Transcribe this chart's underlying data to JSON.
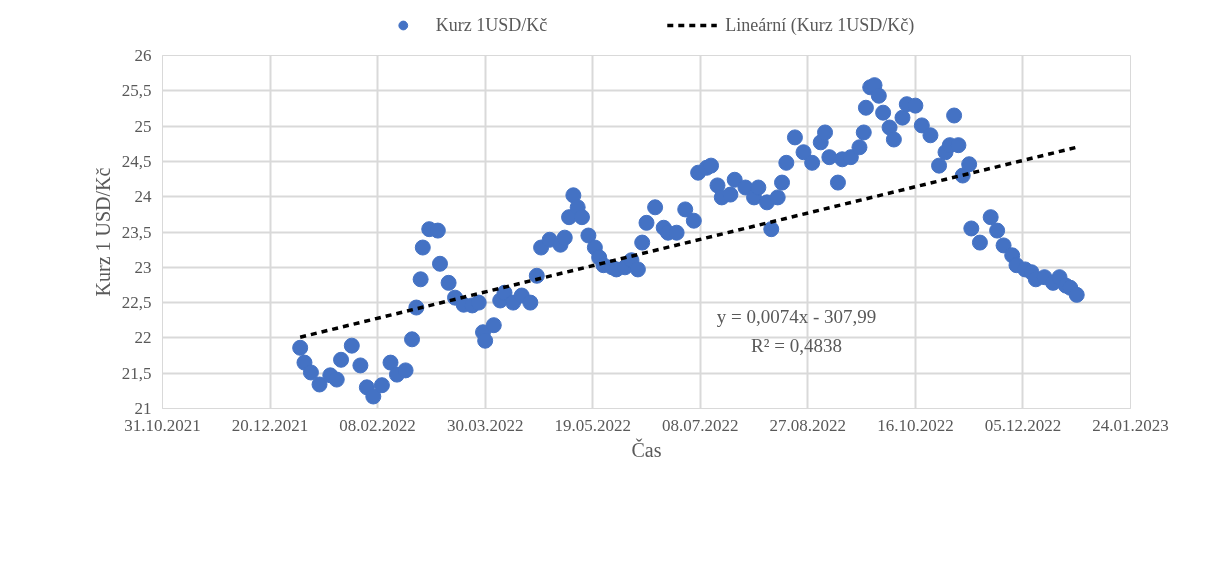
{
  "chart_data": {
    "type": "scatter",
    "xlabel": "Čas",
    "ylabel": "Kurz 1 USD/Kč",
    "xlim": [
      "2021-10-31",
      "2023-01-24"
    ],
    "xticks": [
      {
        "value": "2021-10-31",
        "label": "31.10.2021"
      },
      {
        "value": "2021-12-20",
        "label": "20.12.2021"
      },
      {
        "value": "2022-02-08",
        "label": "08.02.2022"
      },
      {
        "value": "2022-03-30",
        "label": "30.03.2022"
      },
      {
        "value": "2022-05-19",
        "label": "19.05.2022"
      },
      {
        "value": "2022-07-08",
        "label": "08.07.2022"
      },
      {
        "value": "2022-08-27",
        "label": "27.08.2022"
      },
      {
        "value": "2022-10-16",
        "label": "16.10.2022"
      },
      {
        "value": "2022-12-05",
        "label": "05.12.2022"
      },
      {
        "value": "2023-01-24",
        "label": "24.01.2023"
      }
    ],
    "ylim": [
      21,
      26
    ],
    "yticks": [
      21,
      {
        "value": 21.5,
        "label": "21,5"
      },
      22,
      {
        "value": 22.5,
        "label": "22,5"
      },
      23,
      {
        "value": 23.5,
        "label": "23,5"
      },
      24,
      {
        "value": 24.5,
        "label": "24,5"
      },
      25,
      {
        "value": 25.5,
        "label": "25,5"
      },
      26
    ],
    "grid": true,
    "legend": "top",
    "annotations": [
      "y = 0,0074x - 307,99",
      "R² = 0,4838"
    ],
    "series": [
      {
        "name": "Kurz 1USD/Kč",
        "marker": "circle",
        "color": "#4472c4",
        "x": [
          "2022-01-03",
          "2022-01-05",
          "2022-01-08",
          "2022-01-12",
          "2022-01-17",
          "2022-01-20",
          "2022-01-22",
          "2022-01-27",
          "2022-01-31",
          "2022-02-03",
          "2022-02-06",
          "2022-02-10",
          "2022-02-14",
          "2022-02-17",
          "2022-02-21",
          "2022-02-24",
          "2022-02-26",
          "2022-02-28",
          "2022-03-01",
          "2022-03-04",
          "2022-03-08",
          "2022-03-09",
          "2022-03-13",
          "2022-03-16",
          "2022-03-20",
          "2022-03-24",
          "2022-03-27",
          "2022-03-29",
          "2022-03-30",
          "2022-04-03",
          "2022-04-06",
          "2022-04-08",
          "2022-04-12",
          "2022-04-16",
          "2022-04-20",
          "2022-04-23",
          "2022-04-25",
          "2022-04-29",
          "2022-05-04",
          "2022-05-06",
          "2022-05-08",
          "2022-05-10",
          "2022-05-12",
          "2022-05-14",
          "2022-05-17",
          "2022-05-20",
          "2022-05-22",
          "2022-05-24",
          "2022-05-28",
          "2022-05-30",
          "2022-06-03",
          "2022-06-06",
          "2022-06-09",
          "2022-06-11",
          "2022-06-13",
          "2022-06-17",
          "2022-06-21",
          "2022-06-23",
          "2022-06-27",
          "2022-07-01",
          "2022-07-05",
          "2022-07-07",
          "2022-07-11",
          "2022-07-13",
          "2022-07-16",
          "2022-07-18",
          "2022-07-22",
          "2022-07-24",
          "2022-07-29",
          "2022-08-02",
          "2022-08-04",
          "2022-08-08",
          "2022-08-10",
          "2022-08-13",
          "2022-08-15",
          "2022-08-17",
          "2022-08-21",
          "2022-08-25",
          "2022-08-29",
          "2022-09-02",
          "2022-09-04",
          "2022-09-06",
          "2022-09-10",
          "2022-09-12",
          "2022-09-16",
          "2022-09-20",
          "2022-09-22",
          "2022-09-23",
          "2022-09-25",
          "2022-09-27",
          "2022-09-29",
          "2022-10-01",
          "2022-10-04",
          "2022-10-06",
          "2022-10-10",
          "2022-10-12",
          "2022-10-16",
          "2022-10-19",
          "2022-10-23",
          "2022-10-27",
          "2022-10-30",
          "2022-11-01",
          "2022-11-03",
          "2022-11-05",
          "2022-11-07",
          "2022-11-10",
          "2022-11-11",
          "2022-11-15",
          "2022-11-20",
          "2022-11-23",
          "2022-11-26",
          "2022-11-30",
          "2022-12-02",
          "2022-12-06",
          "2022-12-09",
          "2022-12-11",
          "2022-12-15",
          "2022-12-19",
          "2022-12-22",
          "2022-12-25",
          "2022-12-27",
          "2022-12-30"
        ],
        "values": [
          21.86,
          21.65,
          21.51,
          21.34,
          21.47,
          21.41,
          21.69,
          21.89,
          21.61,
          21.3,
          21.17,
          21.33,
          21.65,
          21.48,
          21.54,
          21.98,
          22.43,
          22.83,
          23.28,
          23.54,
          23.52,
          23.05,
          22.78,
          22.57,
          22.47,
          22.46,
          22.5,
          22.08,
          21.96,
          22.18,
          22.53,
          22.64,
          22.5,
          22.6,
          22.5,
          22.88,
          23.28,
          23.39,
          23.32,
          23.42,
          23.71,
          24.02,
          23.85,
          23.71,
          23.45,
          23.28,
          23.14,
          23.03,
          23.0,
          22.97,
          23.0,
          23.1,
          22.97,
          23.35,
          23.63,
          23.85,
          23.56,
          23.49,
          23.49,
          23.82,
          23.66,
          24.34,
          24.41,
          24.44,
          24.16,
          23.99,
          24.03,
          24.24,
          24.13,
          23.99,
          24.13,
          23.92,
          23.54,
          23.99,
          24.2,
          24.48,
          24.84,
          24.63,
          24.48,
          24.77,
          24.91,
          24.56,
          24.2,
          24.53,
          24.56,
          24.7,
          24.91,
          25.26,
          25.55,
          25.58,
          25.43,
          25.19,
          24.98,
          24.81,
          25.12,
          25.31,
          25.29,
          25.01,
          24.87,
          24.44,
          24.63,
          24.73,
          25.15,
          24.73,
          24.3,
          24.46,
          23.55,
          23.35,
          23.71,
          23.52,
          23.31,
          23.17,
          23.03,
          22.97,
          22.93,
          22.83,
          22.86,
          22.78,
          22.86,
          22.74,
          22.71,
          22.61
        ]
      },
      {
        "name": "Lineární (Kurz 1USD/Kč)",
        "type": "line",
        "line_style": "dashed",
        "color": "#000000",
        "x": [
          "2022-01-03",
          "2022-12-30"
        ],
        "values": [
          22.01,
          24.7
        ]
      }
    ]
  }
}
